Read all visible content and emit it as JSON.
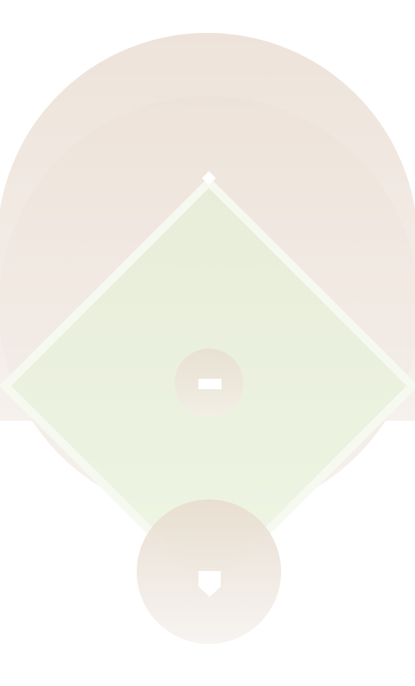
{
  "colors": {
    "background": "#ffffff",
    "dirt_top": "#ede3da",
    "dirt_bottom": "#f6f1ed",
    "grass_top": "#e8edd9",
    "grass_bottom": "#eef5e4",
    "foul_line": "#f6f9ef",
    "base_white": "#ffffff",
    "mound_top": "#e8e0d3",
    "mound_bottom": "#f2efe4",
    "home_circle_top": "#e8ddd0",
    "home_circle_bottom": "#f7f3f0"
  },
  "icons": {
    "second_base": "second-base-icon",
    "pitching_rubber": "pitching-rubber-icon",
    "home_plate": "home-plate-icon"
  }
}
